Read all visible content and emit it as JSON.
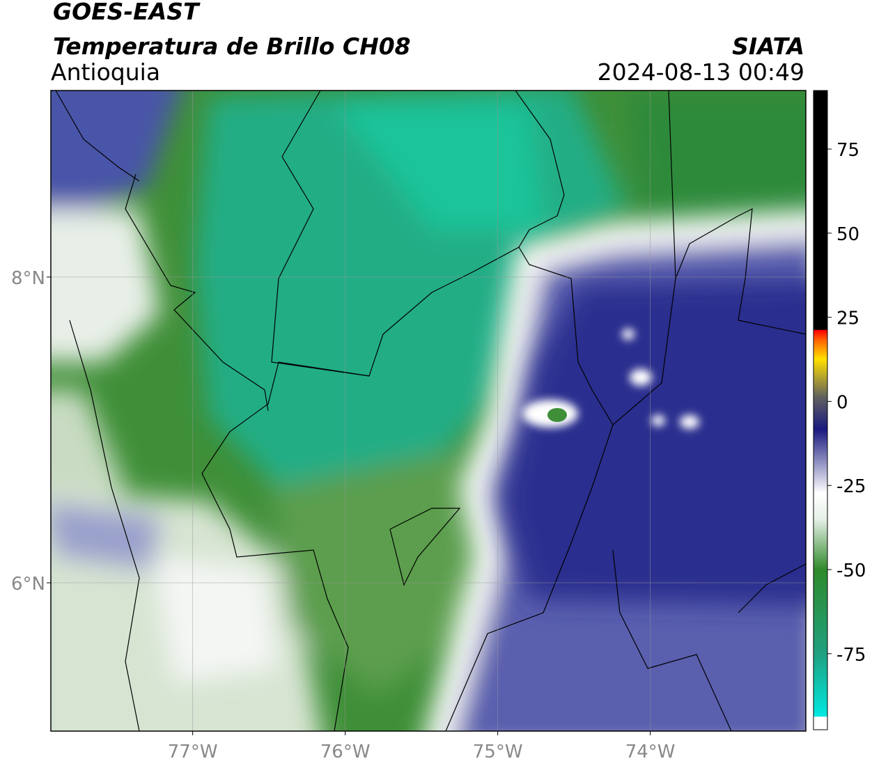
{
  "header": {
    "title": "GOES-EAST",
    "subtitle": "Temperatura de Brillo CH08",
    "region": "Antioquia",
    "source": "SIATA",
    "datetime": "2024-08-13 00:49"
  },
  "map": {
    "xlim": [
      -77.93,
      -72.98
    ],
    "ylim": [
      5.03,
      9.22
    ],
    "xticks": [
      {
        "value": -77,
        "label": "77°W"
      },
      {
        "value": -76,
        "label": "76°W"
      },
      {
        "value": -75,
        "label": "75°W"
      },
      {
        "value": -74,
        "label": "74°W"
      }
    ],
    "yticks": [
      {
        "value": 6,
        "label": "6°N"
      },
      {
        "value": 8,
        "label": "8°N"
      }
    ],
    "grid": true
  },
  "colorbar": {
    "lim": [
      -97.6,
      92.4
    ],
    "ticks": [
      75,
      50,
      25,
      0,
      -25,
      -50,
      -75
    ]
  }
}
